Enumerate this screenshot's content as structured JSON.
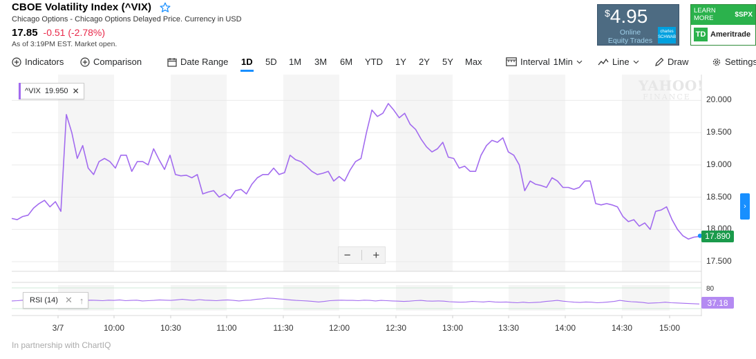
{
  "header": {
    "title": "CBOE Volatility Index (^VIX)",
    "subtitle": "Chicago Options - Chicago Options Delayed Price. Currency in USD",
    "price": "17.85",
    "change": "-0.51 (-2.78%)",
    "as_of": "As of 3:19PM EST. Market open.",
    "change_color": "#e9294a"
  },
  "ads": {
    "schwab": {
      "currency": "$",
      "amount": "4.95",
      "line1": "Online",
      "line2": "Equity Trades",
      "logo_line1": "charles",
      "logo_line2": "SCHWAB"
    },
    "td": {
      "learn1": "LEARN",
      "learn2": "MORE",
      "symbol": "$SPX",
      "logo": "TD",
      "brand": "Ameritrade"
    }
  },
  "toolbar": {
    "indicators": "Indicators",
    "comparison": "Comparison",
    "date_range": "Date Range",
    "ranges": [
      "1D",
      "5D",
      "1M",
      "3M",
      "6M",
      "YTD",
      "1Y",
      "2Y",
      "5Y",
      "Max"
    ],
    "active_range": "1D",
    "interval": "Interval",
    "interval_value": "1Min",
    "chart_type": "Line",
    "draw": "Draw",
    "settings": "Settings"
  },
  "chart": {
    "legend_symbol": "^VIX",
    "legend_value": "19.950",
    "current_price": "17.890",
    "current_price_color": "#1a9a4b",
    "line_color": "#a26bef",
    "watermark_line1": "YAHOO!",
    "watermark_line2": "FINANCE",
    "rsi_label": "RSI (14)",
    "rsi_value": "37.18",
    "rsi_top_label": "80",
    "zoom_out": "−",
    "zoom_in": "+",
    "partnership": "In partnership with ChartIQ"
  },
  "chart_data": {
    "type": "line",
    "title": "",
    "ylabel": "",
    "xlabel": "",
    "x_ticks": [
      "3/7",
      "10:00",
      "10:30",
      "11:00",
      "11:30",
      "12:00",
      "12:30",
      "13:00",
      "13:30",
      "14:00",
      "14:30",
      "15:00"
    ],
    "y_ticks": [
      17.5,
      18.0,
      18.5,
      19.0,
      19.5,
      20.0
    ],
    "ylim": [
      17.35,
      20.4
    ],
    "series": [
      {
        "values": [
          18.17,
          18.15,
          18.2,
          18.22,
          18.33,
          18.4,
          18.45,
          18.35,
          18.43,
          18.28,
          19.78,
          19.5,
          19.1,
          19.3,
          18.95,
          18.85,
          19.05,
          19.1,
          19.05,
          18.95,
          19.15,
          19.15,
          18.9,
          19.05,
          19.05,
          19.0,
          19.25,
          19.08,
          18.93,
          19.15,
          18.85,
          18.83,
          18.84,
          18.8,
          18.85,
          18.55,
          18.58,
          18.6,
          18.5,
          18.55,
          18.48,
          18.6,
          18.62,
          18.55,
          18.7,
          18.8,
          18.85,
          18.85,
          18.95,
          18.85,
          18.88,
          19.15,
          19.08,
          19.05,
          18.98,
          18.9,
          18.85,
          18.87,
          18.9,
          18.75,
          18.82,
          18.75,
          18.92,
          19.05,
          19.1,
          19.5,
          19.85,
          19.75,
          19.8,
          19.95,
          19.85,
          19.73,
          19.8,
          19.63,
          19.55,
          19.4,
          19.28,
          19.2,
          19.25,
          19.35,
          19.12,
          19.1,
          18.95,
          18.98,
          18.9,
          18.9,
          19.15,
          19.3,
          19.38,
          19.35,
          19.42,
          19.2,
          19.15,
          19.0,
          18.6,
          18.75,
          18.7,
          18.68,
          18.65,
          18.8,
          18.75,
          18.65,
          18.65,
          18.62,
          18.65,
          18.75,
          18.75,
          18.4,
          18.38,
          18.4,
          18.38,
          18.35,
          18.2,
          18.12,
          18.15,
          18.05,
          18.1,
          18.0,
          18.28,
          18.3,
          18.35,
          18.15,
          18.0,
          17.9,
          17.85,
          17.88,
          17.89
        ]
      }
    ],
    "rsi": {
      "values": [
        49,
        50,
        52,
        51,
        53,
        52,
        51,
        55,
        52,
        51,
        53,
        51,
        49,
        51,
        52,
        51,
        50,
        52,
        51,
        53,
        50,
        51,
        52,
        49,
        50,
        51,
        53,
        52,
        51,
        53,
        55,
        53,
        51,
        54,
        52,
        51,
        50,
        52,
        53,
        51,
        49,
        51,
        52,
        55,
        57,
        60,
        59,
        57,
        55,
        53,
        51,
        50,
        49,
        47,
        45,
        47,
        50,
        51,
        52,
        51,
        51,
        50,
        52,
        51,
        49,
        51,
        50,
        49,
        48,
        47,
        48,
        50,
        51,
        49,
        48,
        49,
        48,
        46,
        45,
        44,
        45,
        47,
        46,
        45,
        47,
        45,
        44,
        45,
        43,
        42,
        44,
        42,
        43,
        44,
        47,
        49,
        51,
        48,
        46,
        44,
        43,
        45,
        44,
        42,
        43,
        45,
        47,
        51,
        48,
        46,
        45,
        43,
        40,
        41,
        42,
        44,
        42,
        41,
        40,
        39,
        38,
        37
      ],
      "ylim": [
        0,
        100
      ]
    },
    "grid": true
  }
}
